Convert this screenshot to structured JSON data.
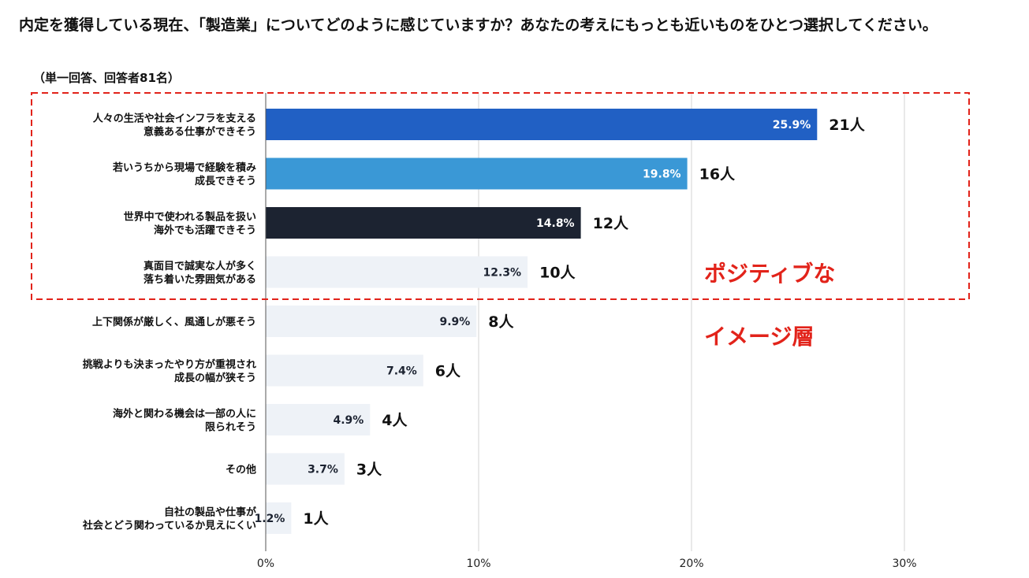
{
  "title": "内定を獲得している現在、「製造業」についてどのように感じていますか？あなたの考えにもっとも近いものをひとつ選択してください。",
  "subtitle": "（単一回答、回答者81名）",
  "callout": {
    "lines": [
      "ポジティブな",
      "イメージ層"
    ],
    "color": "#e2231a"
  },
  "chart_data": {
    "type": "bar",
    "orientation": "horizontal",
    "categories": [
      [
        "人々の生活や社会インフラを支える",
        "意義ある仕事ができそう"
      ],
      [
        "若いうちから現場で経験を積み",
        "成長できそう"
      ],
      [
        "世界中で使われる製品を扱い",
        "海外でも活躍できそう"
      ],
      [
        "真面目で誠実な人が多く",
        "落ち着いた雰囲気がある"
      ],
      [
        "上下関係が厳しく、風通しが悪そう"
      ],
      [
        "挑戦よりも決まったやり方が重視され",
        "成長の幅が狭そう"
      ],
      [
        "海外と関わる機会は一部の人に",
        "限られそう"
      ],
      [
        "その他"
      ],
      [
        "自社の製品や仕事が",
        "社会とどう関わっているか見えにくい"
      ]
    ],
    "values": [
      25.9,
      19.8,
      14.8,
      12.3,
      9.9,
      7.4,
      4.9,
      3.7,
      1.2
    ],
    "value_labels": [
      "25.9%",
      "19.8%",
      "14.8%",
      "12.3%",
      "9.9%",
      "7.4%",
      "4.9%",
      "3.7%",
      "1.2%"
    ],
    "counts": [
      "21人",
      "16人",
      "12人",
      "10人",
      "8人",
      "6人",
      "4人",
      "3人",
      "1人"
    ],
    "bar_colors": [
      "#2160c4",
      "#3a98d6",
      "#1c2331",
      "#eef2f7",
      "#eef2f7",
      "#eef2f7",
      "#eef2f7",
      "#eef2f7",
      "#eef2f7"
    ],
    "label_colors": [
      "#ffffff",
      "#ffffff",
      "#ffffff",
      "#1c2331",
      "#1c2331",
      "#1c2331",
      "#1c2331",
      "#1c2331",
      "#1c2331"
    ],
    "xlim": [
      0,
      30
    ],
    "xticks": [
      "0%",
      "10%",
      "20%",
      "30%"
    ],
    "grid": true,
    "highlight_box_color": "#e2231a"
  }
}
